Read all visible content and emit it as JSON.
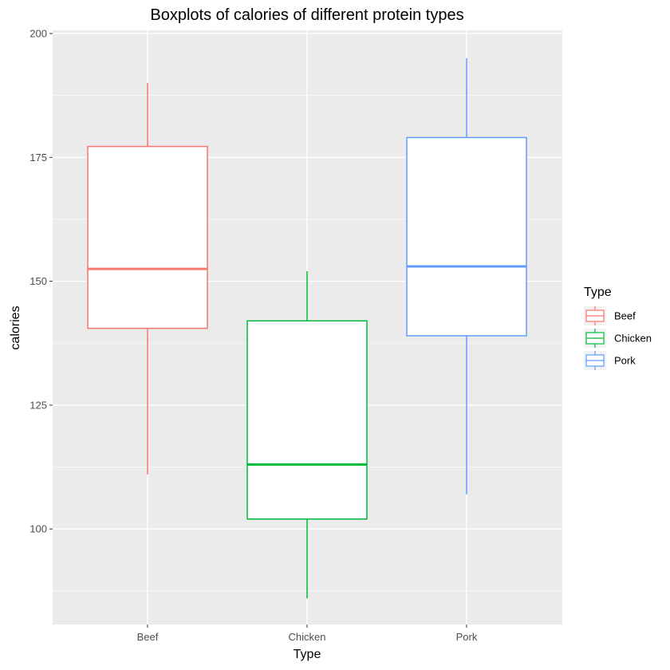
{
  "chart_data": {
    "type": "boxplot",
    "title": "Boxplots of calories of different protein types",
    "xlabel": "Type",
    "ylabel": "calories",
    "ylim": [
      82,
      205
    ],
    "y_ticks": [
      100,
      125,
      150,
      175,
      200
    ],
    "categories": [
      "Beef",
      "Chicken",
      "Pork"
    ],
    "colors": [
      "#f8766d",
      "#00ba38",
      "#619cff"
    ],
    "panel_background": "#ebebeb",
    "grid": true,
    "legend": {
      "title": "Type",
      "placement": "right",
      "items": [
        "Beef",
        "Chicken",
        "Pork"
      ]
    },
    "boxes": [
      {
        "category": "Beef",
        "min": 111,
        "q1": 140.5,
        "median": 152.5,
        "q3": 177.2,
        "max": 190
      },
      {
        "category": "Chicken",
        "min": 86,
        "q1": 102,
        "median": 113,
        "q3": 142,
        "max": 152
      },
      {
        "category": "Pork",
        "min": 107,
        "q1": 139,
        "median": 153,
        "q3": 179,
        "max": 195
      }
    ]
  }
}
